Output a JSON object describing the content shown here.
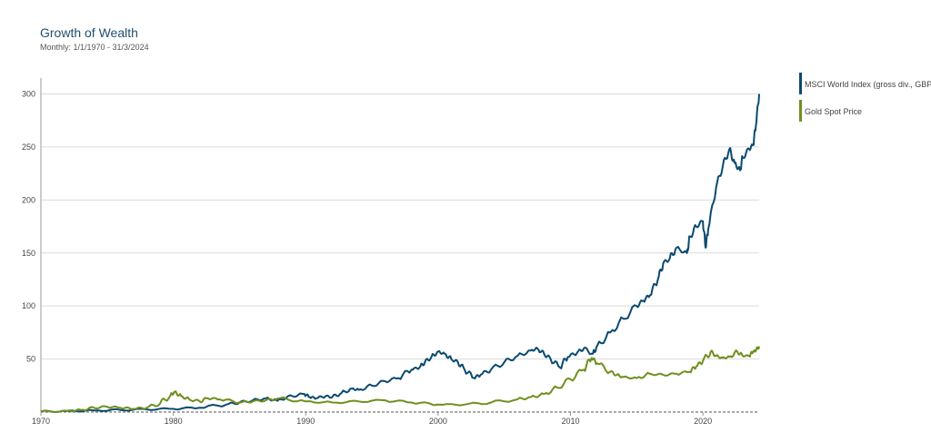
{
  "chart_data": {
    "type": "line",
    "title": "Growth of Wealth",
    "subtitle": "Monthly: 1/1/1970 - 31/3/2024",
    "xlabel": "",
    "ylabel": "",
    "xlim": [
      1970,
      2024.25
    ],
    "ylim": [
      0,
      315
    ],
    "xticks": [
      "1970",
      "1980",
      "1990",
      "2000",
      "2010",
      "2020"
    ],
    "yticks": [
      "50",
      "100",
      "150",
      "200",
      "250",
      "300"
    ],
    "grid": true,
    "legend_position": "right",
    "series": [
      {
        "name": "MSCI World Index (gross div., GBP)",
        "color": "#0b4a6f",
        "x": [
          1970,
          1972,
          1974,
          1976,
          1978,
          1980,
          1982,
          1984,
          1985,
          1986,
          1987,
          1987.8,
          1988,
          1989,
          1989.9,
          1990.3,
          1990.8,
          1991.5,
          1992,
          1992.7,
          1993.5,
          1994,
          1995,
          1996,
          1997,
          1998,
          1998.6,
          1999,
          1999.5,
          2000,
          2000.5,
          2001,
          2001.5,
          2002,
          2002.7,
          2003.2,
          2004,
          2005,
          2006,
          2007,
          2007.5,
          2008,
          2008.5,
          2009.2,
          2009.8,
          2010.5,
          2011,
          2011.7,
          2012,
          2013,
          2014,
          2015,
          2015.5,
          2016,
          2016.6,
          2017,
          2017.5,
          2018,
          2018.8,
          2019,
          2019.5,
          2020,
          2020.2,
          2020.4,
          2021,
          2021.5,
          2022,
          2022.4,
          2022.8,
          2023,
          2023.5,
          2023.8,
          2024,
          2024.25
        ],
        "values": [
          0.5,
          1,
          1.5,
          2,
          2.5,
          3,
          4,
          7,
          9,
          11,
          13,
          11,
          12,
          15,
          17,
          14,
          13,
          15,
          14,
          18,
          22,
          21,
          25,
          29,
          32,
          40,
          42,
          47,
          52,
          57,
          55,
          50,
          47,
          40,
          32,
          35,
          40,
          47,
          53,
          58,
          60,
          55,
          50,
          42,
          52,
          56,
          60,
          55,
          62,
          75,
          88,
          100,
          105,
          110,
          125,
          140,
          145,
          155,
          150,
          165,
          175,
          180,
          155,
          172,
          212,
          232,
          248,
          235,
          228,
          240,
          248,
          252,
          270,
          300
        ]
      },
      {
        "name": "Gold Spot Price",
        "color": "#6f8f1e",
        "x": [
          1970,
          1972,
          1973,
          1974,
          1975,
          1976,
          1977,
          1978,
          1979,
          1979.8,
          1980.1,
          1980.6,
          1981.2,
          1982,
          1982.6,
          1983.5,
          1985,
          1986,
          1987,
          1988,
          1990,
          1992,
          1994,
          1996,
          1998,
          2000,
          2002,
          2004,
          2006,
          2007,
          2008,
          2009,
          2010,
          2011,
          2011.6,
          2012,
          2013,
          2013.5,
          2014,
          2015,
          2016,
          2017,
          2018,
          2019,
          2019.5,
          2020,
          2020.6,
          2021,
          2021.5,
          2022,
          2022.6,
          2023,
          2023.5,
          2023.8,
          2024,
          2024.25
        ],
        "values": [
          0.5,
          1,
          2,
          4,
          5,
          4,
          3,
          4,
          8,
          16,
          19,
          15,
          12,
          10,
          13,
          12,
          9,
          10,
          11,
          13,
          10,
          9,
          10,
          11,
          9,
          7,
          7,
          9,
          12,
          14,
          17,
          23,
          31,
          40,
          51,
          46,
          38,
          35,
          33,
          32,
          36,
          35,
          36,
          38,
          43,
          48,
          57,
          53,
          51,
          52,
          57,
          53,
          53,
          57,
          58,
          62
        ]
      }
    ]
  }
}
